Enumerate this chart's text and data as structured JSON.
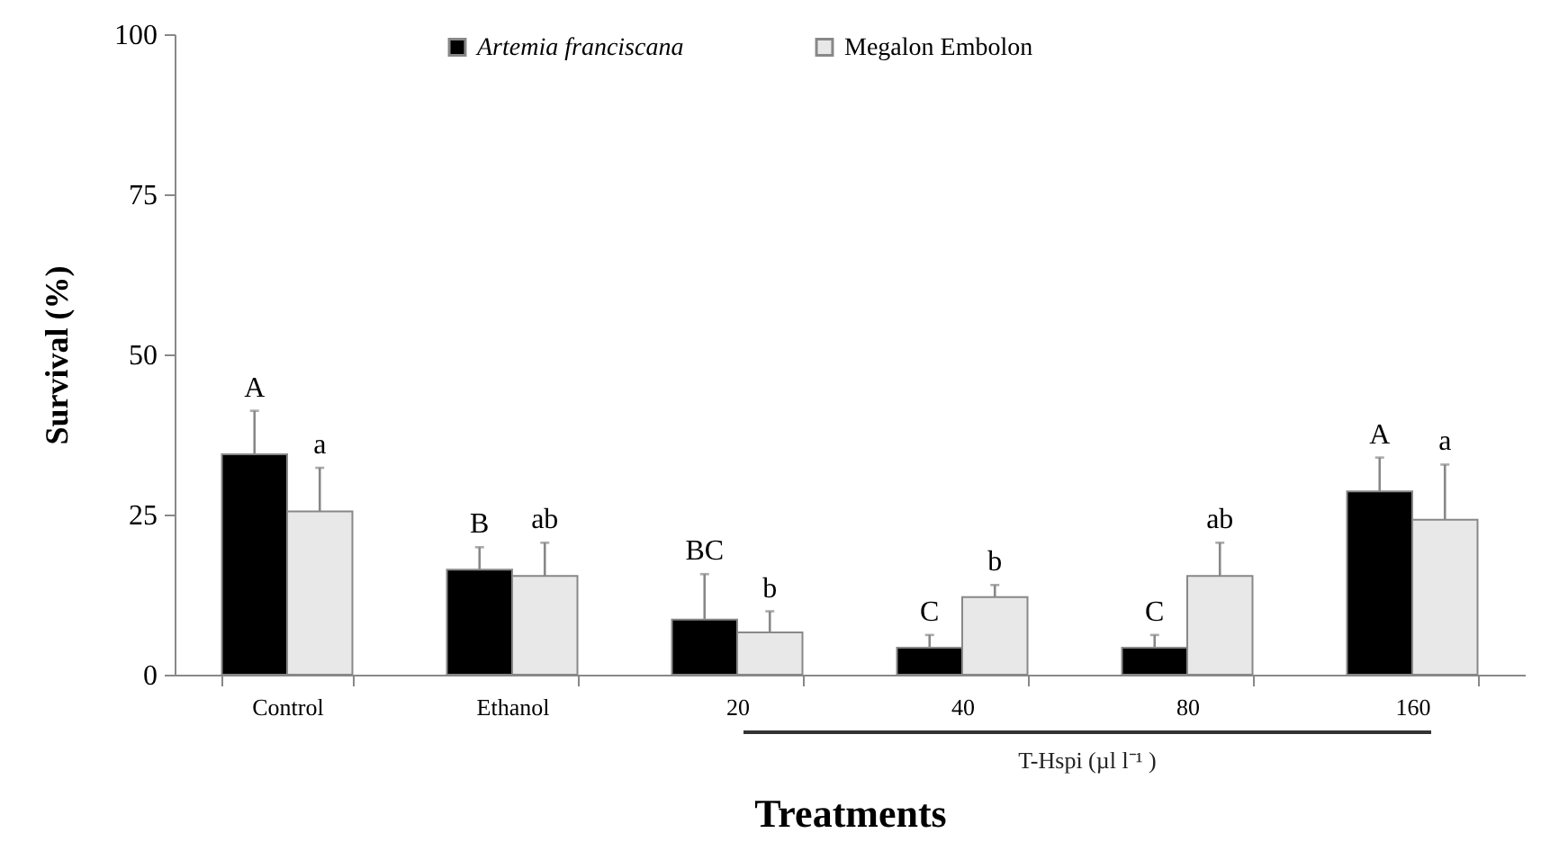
{
  "chart_data": {
    "type": "bar",
    "xlabel": "Treatments",
    "ylabel": "Survival (%)",
    "categories": [
      "Control",
      "Ethanol",
      "20",
      "40",
      "80",
      "160"
    ],
    "series": [
      {
        "name": "Artemia franciscana",
        "color": "#000000",
        "values": [
          34.4,
          16.4,
          8.6,
          4.2,
          4.2,
          28.6
        ],
        "errors": [
          6.8,
          3.5,
          7.1,
          2,
          2,
          5.3
        ],
        "value_labels": [
          "A",
          "B",
          "BC",
          "C",
          "C",
          "A"
        ]
      },
      {
        "name": "Megalon Embolon",
        "color": "#e8e8e8",
        "values": [
          25.5,
          15.4,
          6.6,
          12.1,
          15.4,
          24.2
        ],
        "errors": [
          6.8,
          5.2,
          3.3,
          1.9,
          5.2,
          8.6
        ],
        "value_labels": [
          "a",
          "ab",
          "b",
          "b",
          "ab",
          "a"
        ]
      }
    ],
    "ylim": [
      0,
      100
    ],
    "yticks": [
      0,
      25,
      50,
      75,
      100
    ],
    "grid": false,
    "legend": "top",
    "annotations": [
      "T-Hspi (µl l⁻¹ )"
    ]
  }
}
